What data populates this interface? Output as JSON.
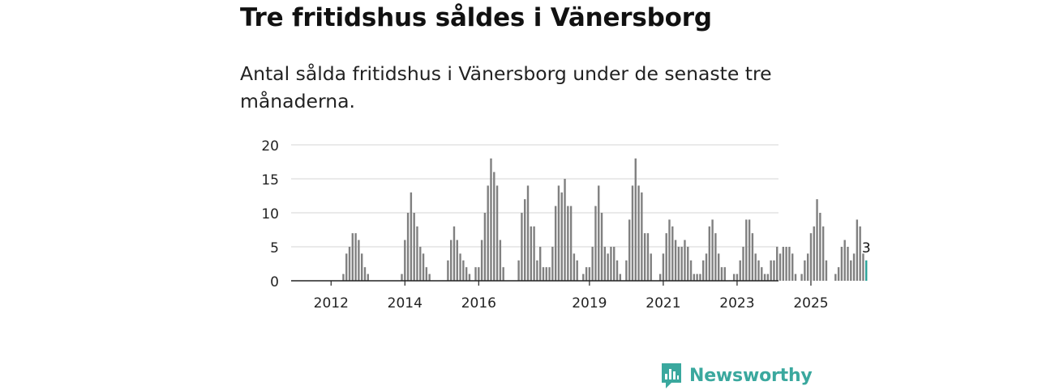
{
  "title": "Tre fritidshus såldes i Vänersborg",
  "subtitle": "Antal sålda fritidshus i Vänersborg under de senaste tre månaderna.",
  "brand": {
    "name": "Newsworthy",
    "icon": "bar-chart-logo-icon",
    "color": "#3aa89e"
  },
  "colors": {
    "bar": "#808080",
    "highlight": "#2aa198",
    "grid": "#d6d6d6",
    "axis": "#222222"
  },
  "chart_data": {
    "type": "bar",
    "title": "Tre fritidshus såldes i Vänersborg",
    "subtitle": "Antal sålda fritidshus i Vänersborg under de senaste tre månaderna.",
    "xlabel": "",
    "ylabel": "",
    "ylim": [
      0,
      20
    ],
    "yticks": [
      0,
      5,
      10,
      15,
      20
    ],
    "grid": true,
    "x_start": "2012-01",
    "xticks": [
      {
        "label": "2012",
        "index": 6
      },
      {
        "label": "2014",
        "index": 30
      },
      {
        "label": "2016",
        "index": 54
      },
      {
        "label": "2019",
        "index": 90
      },
      {
        "label": "2021",
        "index": 114
      },
      {
        "label": "2023",
        "index": 138
      },
      {
        "label": "2025",
        "index": 162
      }
    ],
    "highlight_label": "3",
    "values": [
      0,
      0,
      0,
      0,
      0,
      0,
      0,
      0,
      0,
      0,
      1,
      4,
      5,
      7,
      7,
      6,
      4,
      2,
      1,
      0,
      0,
      0,
      0,
      0,
      0,
      0,
      0,
      0,
      0,
      1,
      6,
      10,
      13,
      10,
      8,
      5,
      4,
      2,
      1,
      0,
      0,
      0,
      0,
      0,
      3,
      6,
      8,
      6,
      4,
      3,
      2,
      1,
      0,
      2,
      2,
      6,
      10,
      14,
      18,
      16,
      14,
      6,
      2,
      0,
      0,
      0,
      0,
      3,
      10,
      12,
      14,
      8,
      8,
      3,
      5,
      2,
      2,
      2,
      5,
      11,
      14,
      13,
      15,
      11,
      11,
      4,
      3,
      0,
      1,
      2,
      2,
      5,
      11,
      14,
      10,
      5,
      4,
      5,
      5,
      3,
      1,
      0,
      3,
      9,
      14,
      18,
      14,
      13,
      7,
      7,
      4,
      0,
      0,
      1,
      4,
      7,
      9,
      8,
      6,
      5,
      5,
      6,
      5,
      3,
      1,
      1,
      1,
      3,
      4,
      8,
      9,
      7,
      4,
      2,
      2,
      0,
      0,
      1,
      1,
      3,
      5,
      9,
      9,
      7,
      4,
      3,
      2,
      1,
      1,
      3,
      3,
      5,
      4,
      5,
      5,
      5,
      4,
      1,
      0,
      1,
      3,
      4,
      7,
      8,
      12,
      10,
      8,
      3,
      0,
      0,
      1,
      2,
      5,
      6,
      5,
      3,
      4,
      9,
      8,
      4,
      3
    ]
  }
}
